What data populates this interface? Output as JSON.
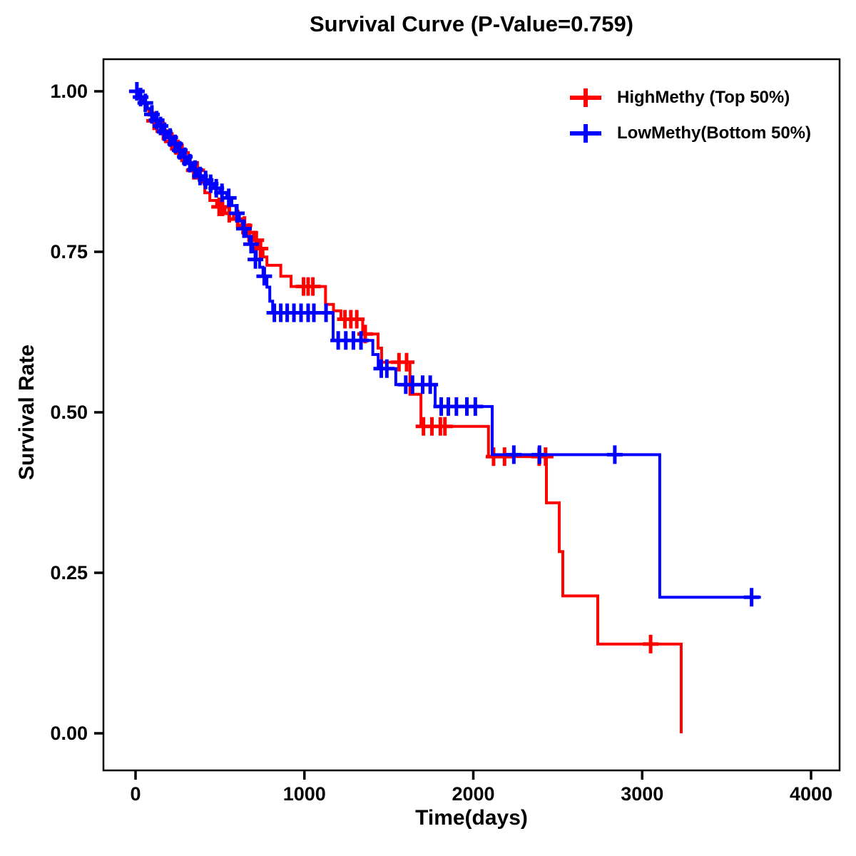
{
  "title": "Survival Curve (P-Value=0.759)",
  "colors": {
    "high_methy": "#FF0000",
    "low_methy": "#0000FF",
    "axis": "#000000",
    "background": "#FFFFFF"
  },
  "chart_data": {
    "type": "line",
    "subtype": "kaplan-meier-step",
    "title": "Survival Curve (P-Value=0.759)",
    "p_value": "0.759",
    "xlabel": "Time(days)",
    "ylabel": "Survival Rate",
    "xlim": [
      -190,
      4170
    ],
    "ylim": [
      -0.06,
      1.05
    ],
    "grid": false,
    "legend_position": "top-right-inside",
    "x_ticks": [
      {
        "value": 0,
        "label": "0"
      },
      {
        "value": 1000,
        "label": "1000"
      },
      {
        "value": 2000,
        "label": "2000"
      },
      {
        "value": 3000,
        "label": "3000"
      },
      {
        "value": 4000,
        "label": "4000"
      }
    ],
    "y_ticks": [
      {
        "value": 0.0,
        "label": "0.00"
      },
      {
        "value": 0.25,
        "label": "0.25"
      },
      {
        "value": 0.5,
        "label": "0.50"
      },
      {
        "value": 0.75,
        "label": "0.75"
      },
      {
        "value": 1.0,
        "label": "1.00"
      }
    ],
    "series": [
      {
        "name": "HighMethy (Top 50%)",
        "color": "#FF0000",
        "tail_end": 3231,
        "steps": [
          [
            0,
            1.0
          ],
          [
            20,
            0.99
          ],
          [
            40,
            0.981
          ],
          [
            60,
            0.972
          ],
          [
            80,
            0.963
          ],
          [
            100,
            0.954
          ],
          [
            125,
            0.946
          ],
          [
            150,
            0.938
          ],
          [
            175,
            0.93
          ],
          [
            200,
            0.922
          ],
          [
            230,
            0.913
          ],
          [
            260,
            0.904
          ],
          [
            290,
            0.895
          ],
          [
            320,
            0.886
          ],
          [
            350,
            0.877
          ],
          [
            380,
            0.858
          ],
          [
            410,
            0.842
          ],
          [
            440,
            0.83
          ],
          [
            480,
            0.82
          ],
          [
            530,
            0.81
          ],
          [
            580,
            0.801
          ],
          [
            630,
            0.791
          ],
          [
            665,
            0.78
          ],
          [
            700,
            0.768
          ],
          [
            730,
            0.755
          ],
          [
            755,
            0.742
          ],
          [
            778,
            0.729
          ],
          [
            860,
            0.712
          ],
          [
            921,
            0.696
          ],
          [
            1125,
            0.668
          ],
          [
            1172,
            0.658
          ],
          [
            1216,
            0.645
          ],
          [
            1345,
            0.622
          ],
          [
            1436,
            0.6
          ],
          [
            1457,
            0.578
          ],
          [
            1625,
            0.528
          ],
          [
            1690,
            0.478
          ],
          [
            2090,
            0.431
          ],
          [
            2433,
            0.359
          ],
          [
            2509,
            0.283
          ],
          [
            2530,
            0.214
          ],
          [
            2737,
            0.139
          ],
          [
            3231,
            0.0
          ]
        ],
        "censors": [
          [
            110,
            0.954
          ],
          [
            165,
            0.938
          ],
          [
            215,
            0.922
          ],
          [
            275,
            0.904
          ],
          [
            345,
            0.877
          ],
          [
            365,
            0.877
          ],
          [
            495,
            0.82
          ],
          [
            515,
            0.82
          ],
          [
            555,
            0.81
          ],
          [
            605,
            0.801
          ],
          [
            645,
            0.791
          ],
          [
            672,
            0.78
          ],
          [
            715,
            0.768
          ],
          [
            740,
            0.755
          ],
          [
            995,
            0.696
          ],
          [
            1022,
            0.696
          ],
          [
            1050,
            0.696
          ],
          [
            1240,
            0.645
          ],
          [
            1275,
            0.645
          ],
          [
            1310,
            0.645
          ],
          [
            1360,
            0.622
          ],
          [
            1560,
            0.578
          ],
          [
            1605,
            0.578
          ],
          [
            1705,
            0.478
          ],
          [
            1755,
            0.478
          ],
          [
            1805,
            0.478
          ],
          [
            1832,
            0.478
          ],
          [
            2120,
            0.431
          ],
          [
            2185,
            0.431
          ],
          [
            2390,
            0.431
          ],
          [
            2428,
            0.431
          ],
          [
            3050,
            0.139
          ]
        ]
      },
      {
        "name": "LowMethy(Bottom 50%)",
        "color": "#0000FF",
        "tail_end": 3703,
        "steps": [
          [
            0,
            1.0
          ],
          [
            25,
            0.991
          ],
          [
            50,
            0.982
          ],
          [
            70,
            0.973
          ],
          [
            90,
            0.964
          ],
          [
            115,
            0.955
          ],
          [
            140,
            0.946
          ],
          [
            165,
            0.937
          ],
          [
            190,
            0.928
          ],
          [
            220,
            0.918
          ],
          [
            250,
            0.908
          ],
          [
            280,
            0.898
          ],
          [
            310,
            0.888
          ],
          [
            340,
            0.878
          ],
          [
            370,
            0.868
          ],
          [
            400,
            0.862
          ],
          [
            430,
            0.856
          ],
          [
            465,
            0.849
          ],
          [
            500,
            0.842
          ],
          [
            540,
            0.834
          ],
          [
            570,
            0.822
          ],
          [
            595,
            0.81
          ],
          [
            615,
            0.798
          ],
          [
            635,
            0.786
          ],
          [
            655,
            0.774
          ],
          [
            675,
            0.762
          ],
          [
            695,
            0.75
          ],
          [
            715,
            0.738
          ],
          [
            735,
            0.726
          ],
          [
            755,
            0.712
          ],
          [
            778,
            0.695
          ],
          [
            795,
            0.673
          ],
          [
            812,
            0.655
          ],
          [
            1170,
            0.612
          ],
          [
            1405,
            0.59
          ],
          [
            1437,
            0.568
          ],
          [
            1541,
            0.543
          ],
          [
            1774,
            0.509
          ],
          [
            2112,
            0.434
          ],
          [
            3104,
            0.212
          ]
        ],
        "censors": [
          [
            8,
            1.0
          ],
          [
            30,
            0.991
          ],
          [
            58,
            0.982
          ],
          [
            97,
            0.964
          ],
          [
            125,
            0.955
          ],
          [
            148,
            0.946
          ],
          [
            172,
            0.937
          ],
          [
            205,
            0.928
          ],
          [
            235,
            0.918
          ],
          [
            262,
            0.908
          ],
          [
            292,
            0.898
          ],
          [
            322,
            0.888
          ],
          [
            352,
            0.878
          ],
          [
            382,
            0.868
          ],
          [
            415,
            0.862
          ],
          [
            445,
            0.856
          ],
          [
            478,
            0.849
          ],
          [
            512,
            0.842
          ],
          [
            552,
            0.834
          ],
          [
            600,
            0.81
          ],
          [
            642,
            0.786
          ],
          [
            684,
            0.762
          ],
          [
            710,
            0.738
          ],
          [
            762,
            0.712
          ],
          [
            822,
            0.655
          ],
          [
            860,
            0.655
          ],
          [
            898,
            0.655
          ],
          [
            938,
            0.655
          ],
          [
            980,
            0.655
          ],
          [
            1022,
            0.655
          ],
          [
            1056,
            0.655
          ],
          [
            1128,
            0.655
          ],
          [
            1200,
            0.612
          ],
          [
            1245,
            0.612
          ],
          [
            1290,
            0.612
          ],
          [
            1335,
            0.612
          ],
          [
            1455,
            0.568
          ],
          [
            1488,
            0.568
          ],
          [
            1600,
            0.543
          ],
          [
            1640,
            0.543
          ],
          [
            1700,
            0.543
          ],
          [
            1745,
            0.543
          ],
          [
            1810,
            0.509
          ],
          [
            1852,
            0.509
          ],
          [
            1900,
            0.509
          ],
          [
            1962,
            0.509
          ],
          [
            2012,
            0.509
          ],
          [
            2240,
            0.434
          ],
          [
            2392,
            0.434
          ],
          [
            2838,
            0.434
          ],
          [
            3648,
            0.212
          ]
        ]
      }
    ]
  }
}
